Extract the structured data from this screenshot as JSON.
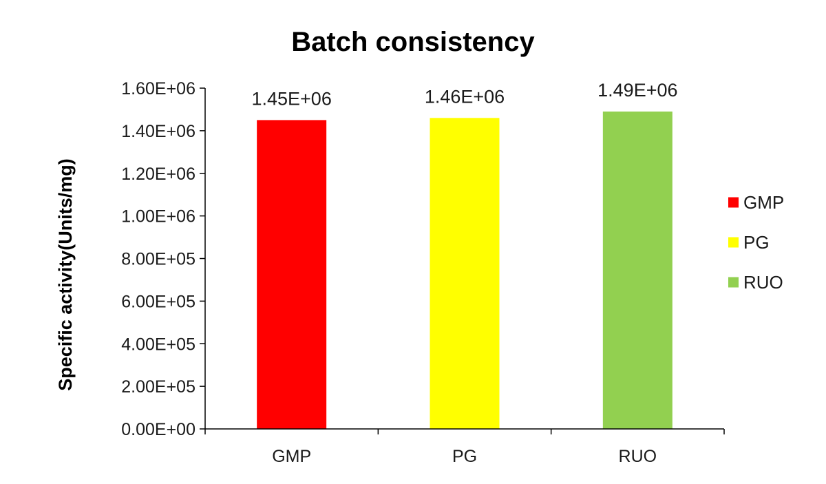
{
  "chart_data": {
    "type": "bar",
    "title": "Batch consistency",
    "xlabel": "",
    "ylabel": "Specific activity(Units/mg)",
    "categories": [
      "GMP",
      "PG",
      "RUO"
    ],
    "values": [
      1450000,
      1460000,
      1490000
    ],
    "data_labels": [
      "1.45E+06",
      "1.46E+06",
      "1.49E+06"
    ],
    "colors": [
      "#ff0000",
      "#ffff00",
      "#92d050"
    ],
    "ylim": [
      0,
      1600000
    ],
    "yticks": [
      0,
      200000,
      400000,
      600000,
      800000,
      1000000,
      1200000,
      1400000,
      1600000
    ],
    "ytick_labels": [
      "0.00E+00",
      "2.00E+05",
      "4.00E+05",
      "6.00E+05",
      "8.00E+05",
      "1.00E+06",
      "1.20E+06",
      "1.40E+06",
      "1.60E+06"
    ],
    "grid": false,
    "legend": {
      "placement": "right",
      "entries": [
        "GMP",
        "PG",
        "RUO"
      ]
    }
  }
}
